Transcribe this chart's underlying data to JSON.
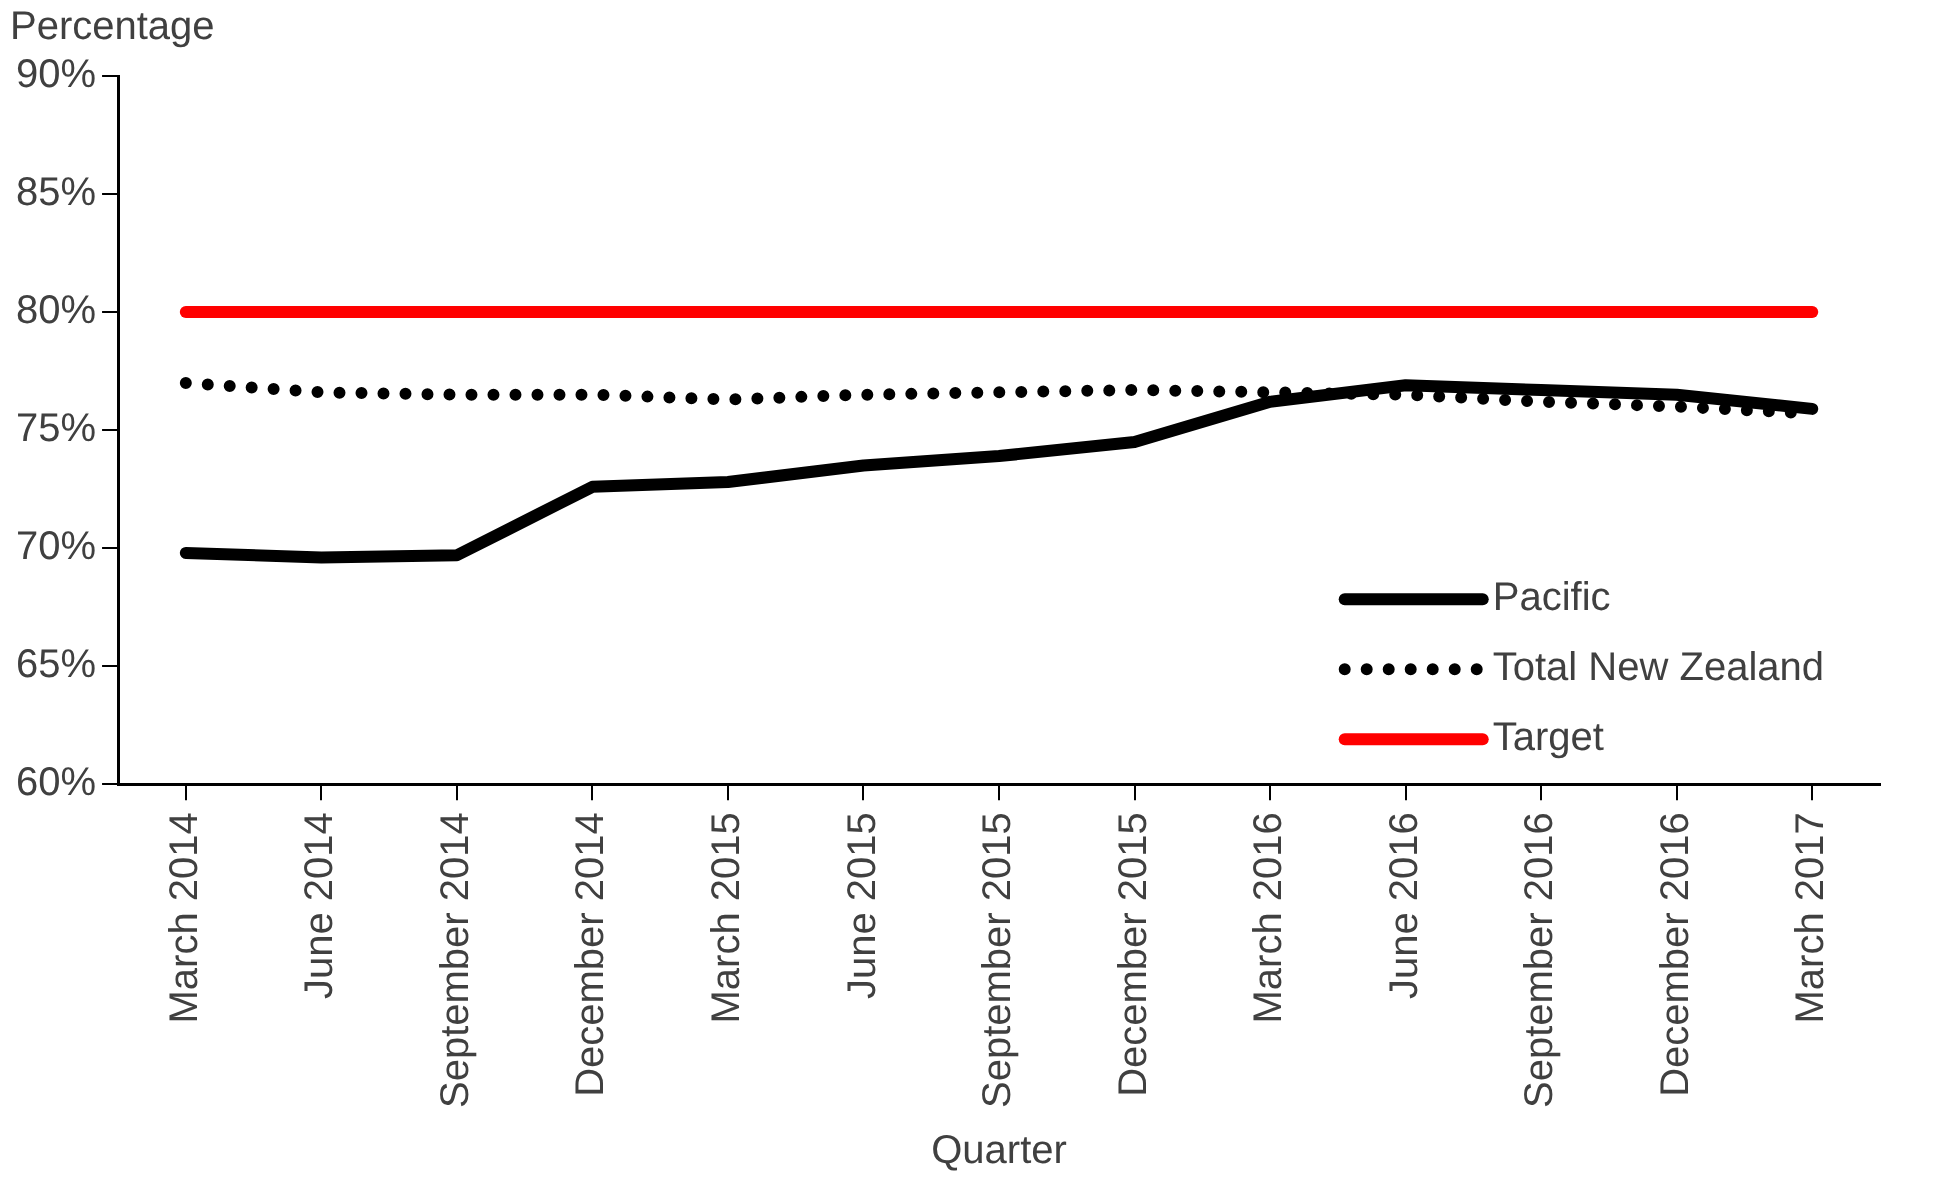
{
  "chart_data": {
    "type": "line",
    "ylabel": "Percentage",
    "xlabel": "Quarter",
    "categories": [
      "March 2014",
      "June 2014",
      "September 2014",
      "December 2014",
      "March 2015",
      "June 2015",
      "September 2015",
      "December 2015",
      "March 2016",
      "June 2016",
      "September 2016",
      "December 2016",
      "March 2017"
    ],
    "series": [
      {
        "name": "Pacific",
        "color": "#000000",
        "line_style": "solid",
        "values": [
          69.8,
          69.6,
          69.7,
          72.6,
          72.8,
          73.5,
          73.9,
          74.5,
          76.2,
          76.9,
          76.7,
          76.5,
          75.9
        ]
      },
      {
        "name": "Total New Zealand",
        "color": "#000000",
        "line_style": "dotted",
        "values": [
          77.0,
          76.6,
          76.5,
          76.5,
          76.3,
          76.5,
          76.6,
          76.7,
          76.6,
          76.5,
          76.2,
          76.0,
          75.7
        ]
      },
      {
        "name": "Target",
        "color": "#ff0000",
        "line_style": "solid",
        "values": [
          80,
          80,
          80,
          80,
          80,
          80,
          80,
          80,
          80,
          80,
          80,
          80,
          80
        ]
      }
    ],
    "ylim": [
      60,
      90
    ],
    "yticks": [
      {
        "value": 60,
        "label": "60%"
      },
      {
        "value": 65,
        "label": "65%"
      },
      {
        "value": 70,
        "label": "70%"
      },
      {
        "value": 75,
        "label": "75%"
      },
      {
        "value": 80,
        "label": "80%"
      },
      {
        "value": 85,
        "label": "85%"
      },
      {
        "value": 90,
        "label": "90%"
      }
    ],
    "grid": false,
    "legend": "bottom right",
    "marker": "none"
  }
}
